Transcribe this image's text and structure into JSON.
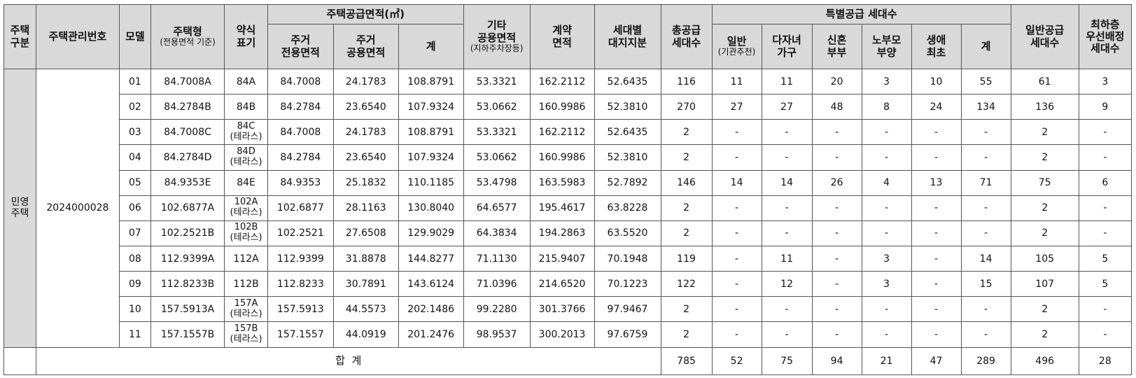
{
  "headers": {
    "housing_type": [
      "주택",
      "구분"
    ],
    "mgmt_no": "주택관리번호",
    "model": "모델",
    "house_type": "주택형",
    "house_type_sub": "(전용면적 기준)",
    "abbrev": [
      "약식",
      "표기"
    ],
    "supply_area_group": "주택공급면적(㎡)",
    "exclusive_area": [
      "주거",
      "전용면적"
    ],
    "common_area": [
      "주거",
      "공용면적"
    ],
    "area_total": "계",
    "other_common": [
      "기타",
      "공용면적"
    ],
    "other_common_sub": "(지하주차장등)",
    "contract_area": [
      "계약",
      "면적"
    ],
    "land_share": [
      "세대별",
      "대지지분"
    ],
    "total_supply": [
      "총공급",
      "세대수"
    ],
    "special_group": "특별공급 세대수",
    "sp_general": "일반",
    "sp_general_sub": "(기관추천)",
    "sp_multichild": [
      "다자녀",
      "가구"
    ],
    "sp_newlywed": [
      "신혼",
      "부부"
    ],
    "sp_elderly": [
      "노부모",
      "부양"
    ],
    "sp_first": [
      "생애",
      "최초"
    ],
    "sp_total": "계",
    "general_supply": [
      "일반공급",
      "세대수"
    ],
    "top_floor": [
      "최하층",
      "우선배정",
      "세대수"
    ]
  },
  "group": {
    "housing_type": [
      "민영",
      "주택"
    ],
    "mgmt_no": "2024000028"
  },
  "rows": [
    {
      "model": "01",
      "type": "84.7008A",
      "abbr": [
        "84A"
      ],
      "excl": "84.7008",
      "common": "24.1783",
      "sum": "108.8791",
      "other": "53.3321",
      "contract": "162.2112",
      "land": "52.6435",
      "total": "116",
      "sp": [
        "11",
        "11",
        "20",
        "3",
        "10",
        "55"
      ],
      "general": "61",
      "top": "3"
    },
    {
      "model": "02",
      "type": "84.2784B",
      "abbr": [
        "84B"
      ],
      "excl": "84.2784",
      "common": "23.6540",
      "sum": "107.9324",
      "other": "53.0662",
      "contract": "160.9986",
      "land": "52.3810",
      "total": "270",
      "sp": [
        "27",
        "27",
        "48",
        "8",
        "24",
        "134"
      ],
      "general": "136",
      "top": "9"
    },
    {
      "model": "03",
      "type": "84.7008C",
      "abbr": [
        "84C",
        "(테라스)"
      ],
      "excl": "84.7008",
      "common": "24.1783",
      "sum": "108.8791",
      "other": "53.3321",
      "contract": "162.2112",
      "land": "52.6435",
      "total": "2",
      "sp": [
        "-",
        "-",
        "-",
        "-",
        "-",
        "-"
      ],
      "general": "2",
      "top": "-"
    },
    {
      "model": "04",
      "type": "84.2784D",
      "abbr": [
        "84D",
        "(테라스)"
      ],
      "excl": "84.2784",
      "common": "23.6540",
      "sum": "107.9324",
      "other": "53.0662",
      "contract": "160.9986",
      "land": "52.3810",
      "total": "2",
      "sp": [
        "-",
        "-",
        "-",
        "-",
        "-",
        "-"
      ],
      "general": "2",
      "top": "-"
    },
    {
      "model": "05",
      "type": "84.9353E",
      "abbr": [
        "84E"
      ],
      "excl": "84.9353",
      "common": "25.1832",
      "sum": "110.1185",
      "other": "53.4798",
      "contract": "163.5983",
      "land": "52.7892",
      "total": "146",
      "sp": [
        "14",
        "14",
        "26",
        "4",
        "13",
        "71"
      ],
      "general": "75",
      "top": "6"
    },
    {
      "model": "06",
      "type": "102.6877A",
      "abbr": [
        "102A",
        "(테라스)"
      ],
      "excl": "102.6877",
      "common": "28.1163",
      "sum": "130.8040",
      "other": "64.6577",
      "contract": "195.4617",
      "land": "63.8228",
      "total": "2",
      "sp": [
        "-",
        "-",
        "-",
        "-",
        "-",
        "-"
      ],
      "general": "2",
      "top": "-"
    },
    {
      "model": "07",
      "type": "102.2521B",
      "abbr": [
        "102B",
        "(테라스)"
      ],
      "excl": "102.2521",
      "common": "27.6508",
      "sum": "129.9029",
      "other": "64.3834",
      "contract": "194.2863",
      "land": "63.5520",
      "total": "2",
      "sp": [
        "-",
        "-",
        "-",
        "-",
        "-",
        "-"
      ],
      "general": "2",
      "top": "-"
    },
    {
      "model": "08",
      "type": "112.9399A",
      "abbr": [
        "112A"
      ],
      "excl": "112.9399",
      "common": "31.8878",
      "sum": "144.8277",
      "other": "71.1130",
      "contract": "215.9407",
      "land": "70.1948",
      "total": "119",
      "sp": [
        "-",
        "11",
        "-",
        "3",
        "-",
        "14"
      ],
      "general": "105",
      "top": "5"
    },
    {
      "model": "09",
      "type": "112.8233B",
      "abbr": [
        "112B"
      ],
      "excl": "112.8233",
      "common": "30.7891",
      "sum": "143.6124",
      "other": "71.0396",
      "contract": "214.6520",
      "land": "70.1223",
      "total": "122",
      "sp": [
        "-",
        "12",
        "-",
        "3",
        "-",
        "15"
      ],
      "general": "107",
      "top": "5"
    },
    {
      "model": "10",
      "type": "157.5913A",
      "abbr": [
        "157A",
        "(테라스)"
      ],
      "excl": "157.5913",
      "common": "44.5573",
      "sum": "202.1486",
      "other": "99.2280",
      "contract": "301.3766",
      "land": "97.9467",
      "total": "2",
      "sp": [
        "-",
        "-",
        "-",
        "-",
        "-",
        "-"
      ],
      "general": "2",
      "top": "-"
    },
    {
      "model": "11",
      "type": "157.1557B",
      "abbr": [
        "157B",
        "(테라스)"
      ],
      "excl": "157.1557",
      "common": "44.0919",
      "sum": "201.2476",
      "other": "98.9537",
      "contract": "300.2013",
      "land": "97.6759",
      "total": "2",
      "sp": [
        "-",
        "-",
        "-",
        "-",
        "-",
        "-"
      ],
      "general": "2",
      "top": "-"
    }
  ],
  "totals": {
    "label": "합  계",
    "total": "785",
    "sp": [
      "52",
      "75",
      "94",
      "21",
      "47",
      "289"
    ],
    "general": "496",
    "top": "28"
  }
}
